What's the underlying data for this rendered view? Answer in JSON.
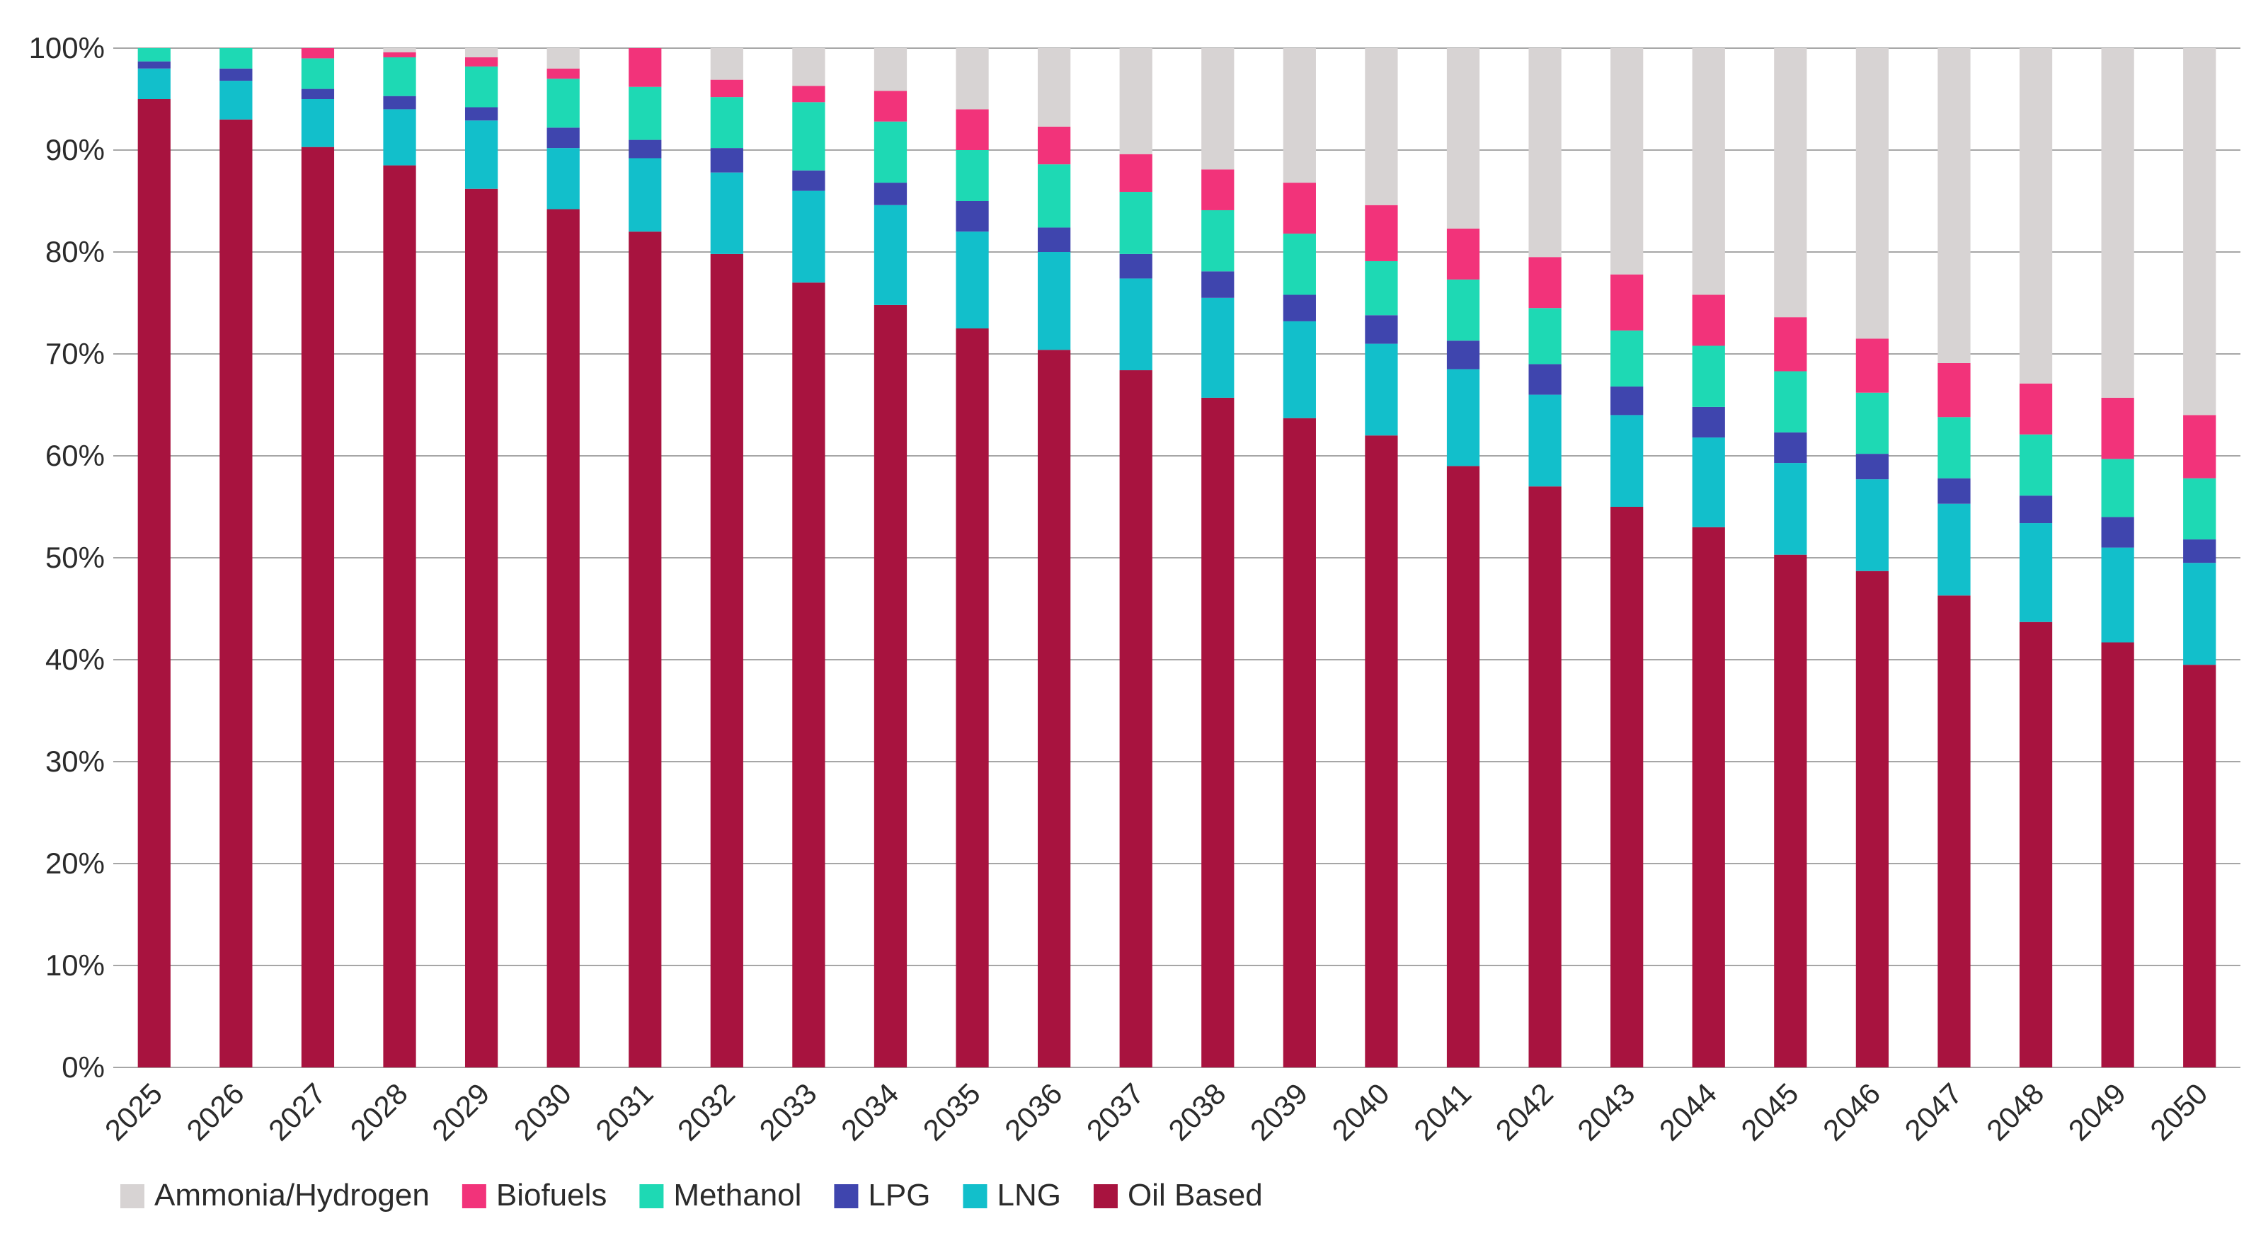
{
  "chart_data": {
    "type": "bar",
    "stacked": true,
    "title": "",
    "xlabel": "",
    "ylabel": "",
    "ylim": [
      0,
      100
    ],
    "y_ticks": [
      "0%",
      "10%",
      "20%",
      "30%",
      "40%",
      "50%",
      "60%",
      "70%",
      "80%",
      "90%",
      "100%"
    ],
    "grid": true,
    "legend_position": "bottom",
    "categories": [
      "2025",
      "2026",
      "2027",
      "2028",
      "2029",
      "2030",
      "2031",
      "2032",
      "2033",
      "2034",
      "2035",
      "2036",
      "2037",
      "2038",
      "2039",
      "2040",
      "2041",
      "2042",
      "2043",
      "2044",
      "2045",
      "2046",
      "2047",
      "2048",
      "2049",
      "2050"
    ],
    "series": [
      {
        "name": "Oil Based",
        "color": "#A8133F",
        "values": [
          95.0,
          93.0,
          90.3,
          88.5,
          86.2,
          84.2,
          82.0,
          79.8,
          77.0,
          74.8,
          72.5,
          70.4,
          68.4,
          65.7,
          63.7,
          62.0,
          59.0,
          57.0,
          55.0,
          53.0,
          50.3,
          48.7,
          46.3,
          43.7,
          41.7,
          39.5
        ]
      },
      {
        "name": "LNG",
        "color": "#12BFCB",
        "values": [
          3.0,
          3.8,
          4.7,
          5.5,
          6.7,
          6.0,
          7.2,
          8.0,
          9.0,
          9.8,
          9.5,
          9.6,
          9.0,
          9.8,
          9.5,
          9.0,
          9.5,
          9.0,
          9.0,
          8.8,
          9.0,
          9.0,
          9.0,
          9.7,
          9.3,
          10.0
        ]
      },
      {
        "name": "LPG",
        "color": "#3F45AE",
        "values": [
          0.7,
          1.2,
          1.0,
          1.3,
          1.3,
          2.0,
          1.8,
          2.4,
          2.0,
          2.2,
          3.0,
          2.4,
          2.4,
          2.6,
          2.6,
          2.8,
          2.8,
          3.0,
          2.8,
          3.0,
          3.0,
          2.5,
          2.5,
          2.7,
          3.0,
          2.3
        ]
      },
      {
        "name": "Methanol",
        "color": "#1ED9B4",
        "values": [
          1.3,
          2.0,
          3.0,
          3.8,
          4.0,
          4.8,
          5.2,
          5.0,
          6.7,
          6.0,
          5.0,
          6.2,
          6.1,
          6.0,
          6.0,
          5.3,
          6.0,
          5.5,
          5.5,
          6.0,
          6.0,
          6.0,
          6.0,
          6.0,
          5.7,
          6.0
        ]
      },
      {
        "name": "Biofuels",
        "color": "#F2337A",
        "values": [
          0.0,
          0.0,
          1.0,
          0.5,
          0.9,
          1.0,
          3.8,
          1.7,
          1.6,
          3.0,
          4.0,
          3.7,
          3.7,
          4.0,
          5.0,
          5.5,
          5.0,
          5.0,
          5.5,
          5.0,
          5.3,
          5.3,
          5.3,
          5.0,
          6.0,
          6.2
        ]
      },
      {
        "name": "Ammonia/Hydrogen",
        "color": "#D7D3D3",
        "values": [
          0.0,
          0.0,
          0.0,
          0.4,
          0.9,
          2.0,
          0.0,
          3.1,
          3.7,
          4.2,
          6.0,
          7.7,
          10.4,
          11.9,
          13.2,
          15.4,
          17.7,
          20.5,
          22.2,
          24.2,
          26.4,
          28.5,
          30.9,
          32.9,
          34.3,
          36.0
        ]
      }
    ],
    "legend_order": [
      "Ammonia/Hydrogen",
      "Biofuels",
      "Methanol",
      "LPG",
      "LNG",
      "Oil Based"
    ]
  }
}
